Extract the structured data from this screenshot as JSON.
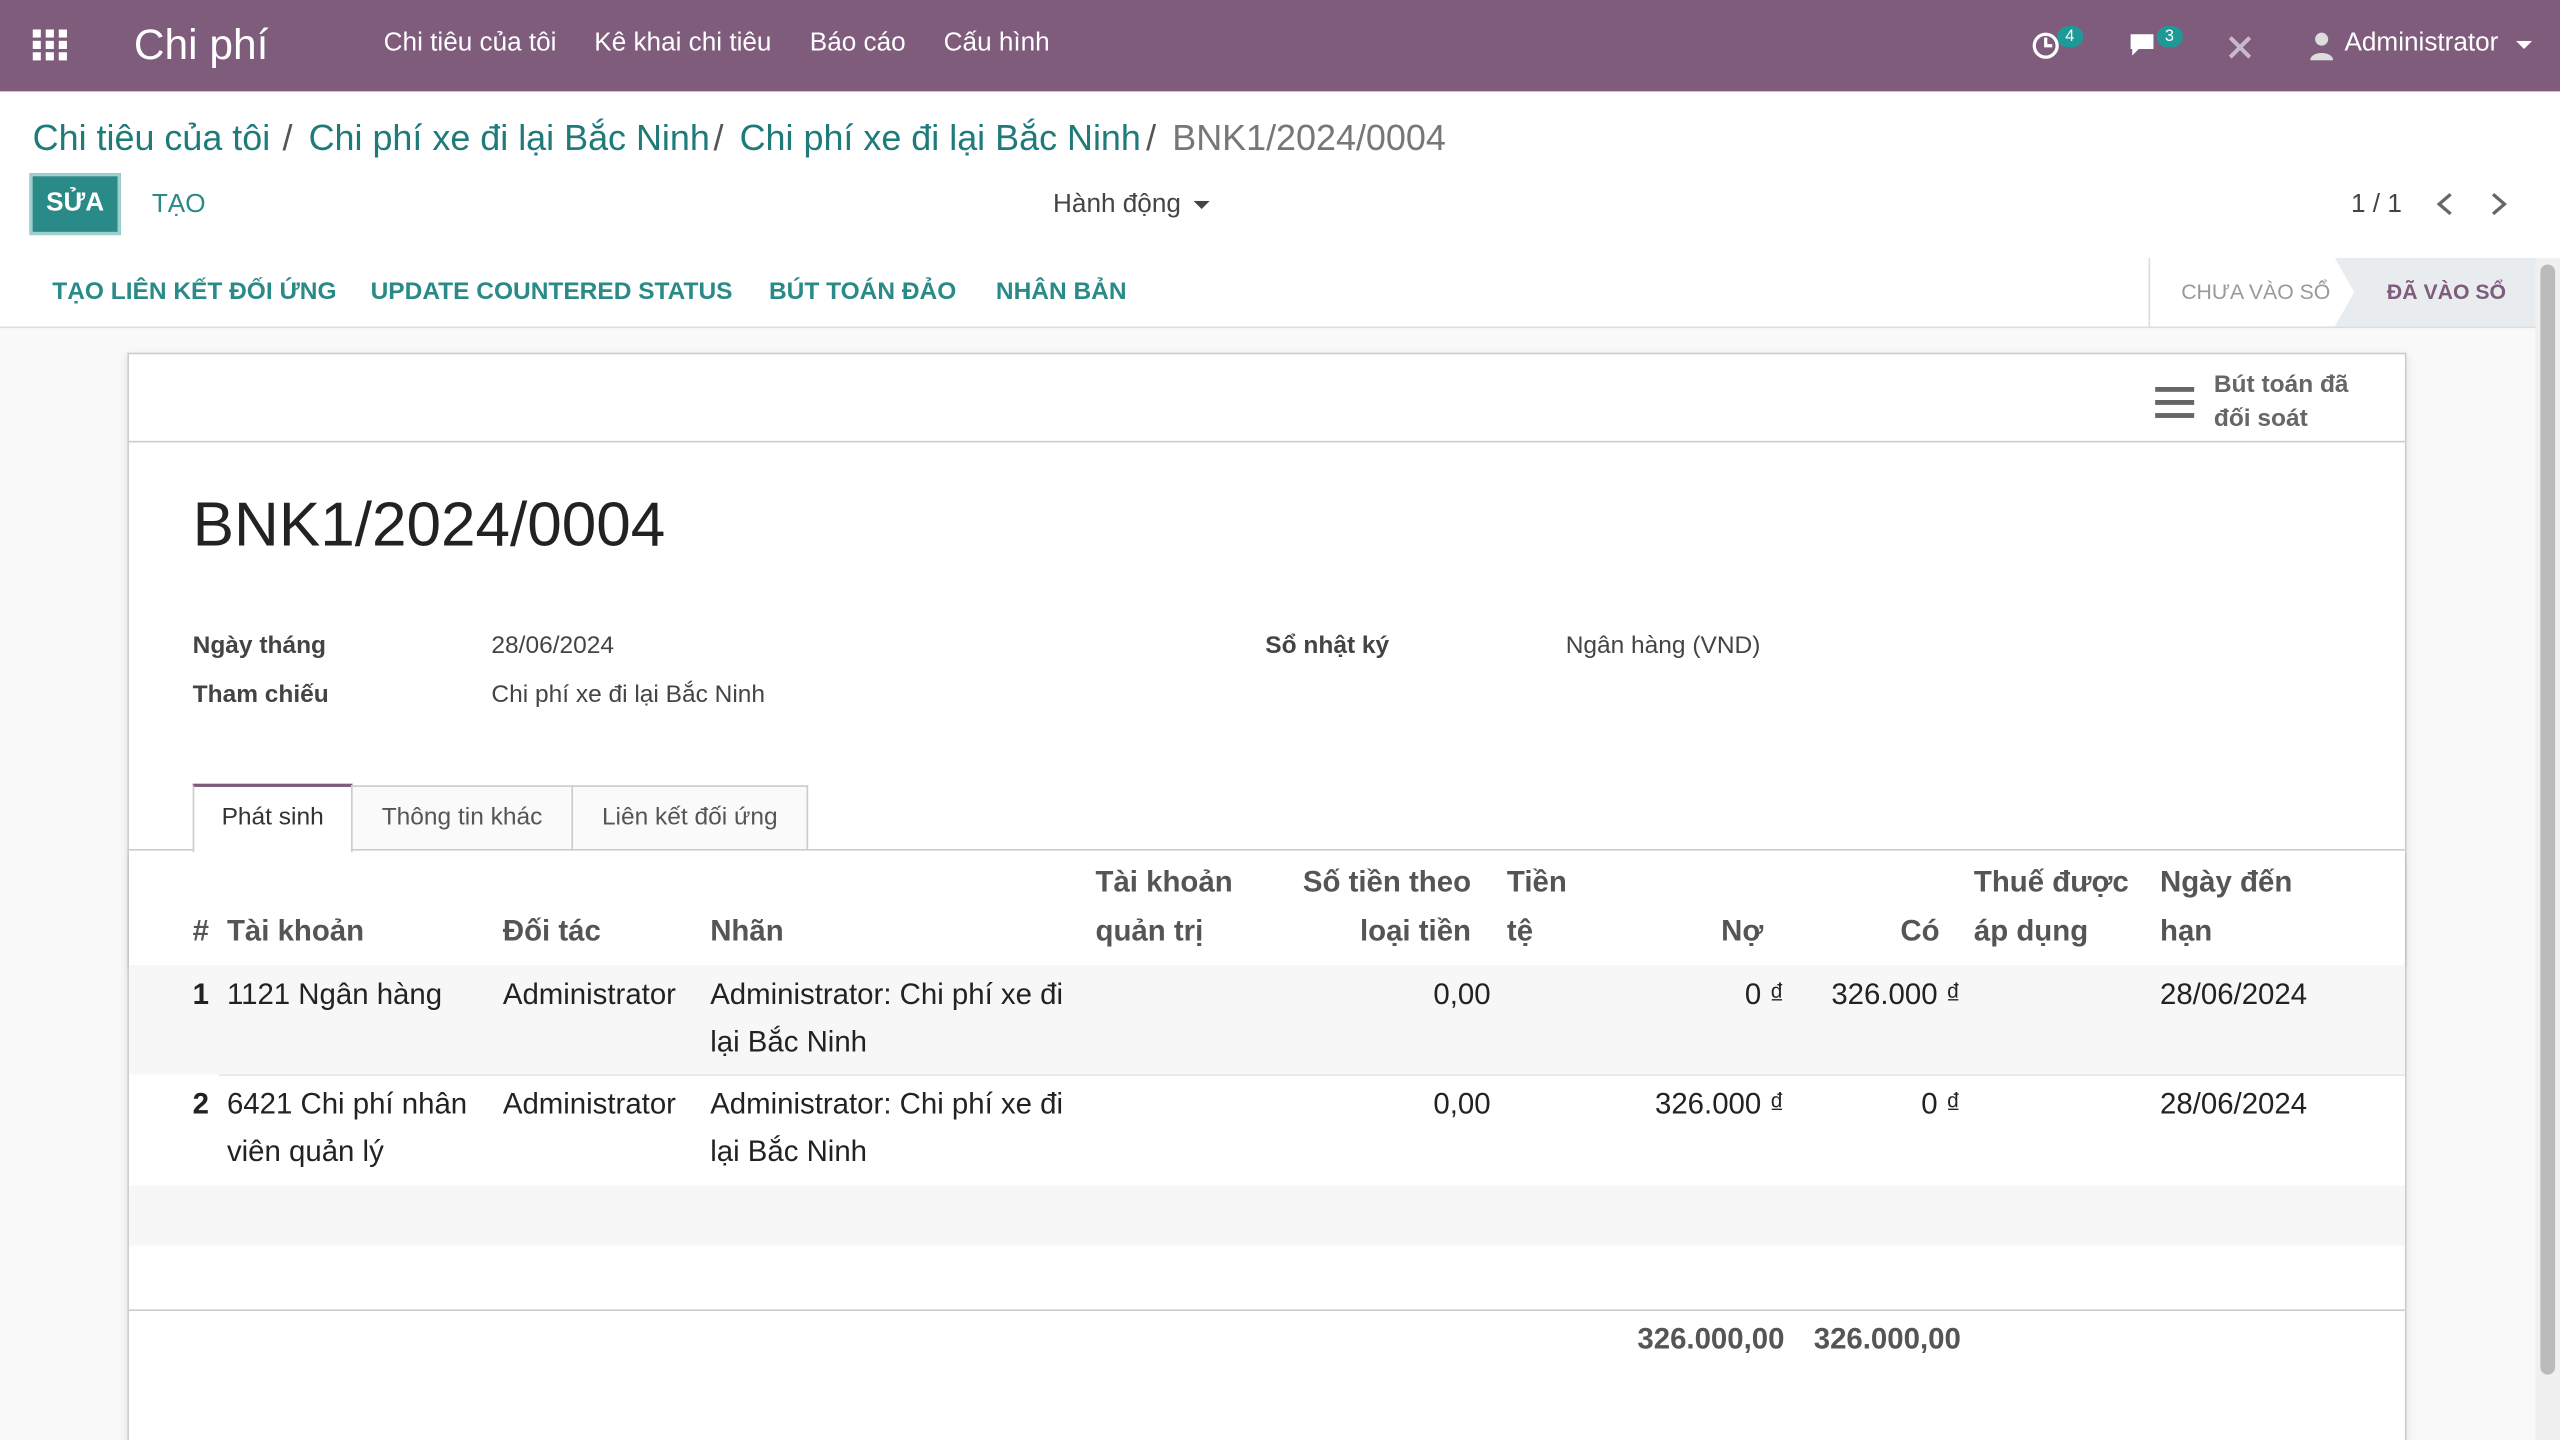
{
  "navbar": {
    "app": "Chi phí",
    "menu": [
      "Chi tiêu của tôi",
      "Kê khai chi tiêu",
      "Báo cáo",
      "Cấu hình"
    ],
    "activity_count": "4",
    "message_count": "3",
    "user": "Administrator"
  },
  "breadcrumb": [
    "Chi tiêu của tôi",
    "Chi phí xe đi lại Bắc Ninh",
    "Chi phí xe đi lại Bắc Ninh",
    "BNK1/2024/0004"
  ],
  "buttons": {
    "edit": "SỬA",
    "create": "TẠO",
    "action": "Hành động",
    "pager": "1 / 1"
  },
  "status_buttons": [
    "TẠO LIÊN KẾT ĐỐI ỨNG",
    "UPDATE COUNTERED STATUS",
    "BÚT TOÁN ĐẢO",
    "NHÂN BẢN"
  ],
  "status_steps": [
    "CHƯA VÀO SỔ",
    "ĐÃ VÀO SỔ"
  ],
  "smart_button": "Bút toán đã đối soát",
  "form": {
    "title": "BNK1/2024/0004",
    "fields": [
      {
        "label": "Ngày tháng",
        "value": "28/06/2024"
      },
      {
        "label": "Tham chiếu",
        "value": "Chi phí xe đi lại Bắc Ninh"
      },
      {
        "label": "Sổ nhật ký",
        "value": "Ngân hàng (VND)"
      }
    ]
  },
  "tabs": [
    "Phát sinh",
    "Thông tin khác",
    "Liên kết đối ứng"
  ],
  "table": {
    "headers": [
      "#",
      "Tài khoản",
      "Đối tác",
      "Nhãn",
      "Tài khoản quản trị",
      "Số tiền theo loại tiền",
      "Tiền tệ",
      "Nợ",
      "Có",
      "Thuế được áp dụng",
      "Ngày đến hạn"
    ],
    "rows": [
      [
        "1",
        "1121 Ngân hàng",
        "Administrator",
        "Administrator: Chi phí xe đi lại Bắc Ninh",
        "",
        "0,00",
        "",
        "0 ₫",
        "326.000 ₫",
        "",
        "28/06/2024"
      ],
      [
        "2",
        "6421 Chi phí nhân viên quản lý",
        "Administrator",
        "Administrator: Chi phí xe đi lại Bắc Ninh",
        "",
        "0,00",
        "",
        "326.000 ₫",
        "0 ₫",
        "",
        "28/06/2024"
      ]
    ],
    "totals": [
      "326.000,00",
      "326.000,00"
    ]
  }
}
